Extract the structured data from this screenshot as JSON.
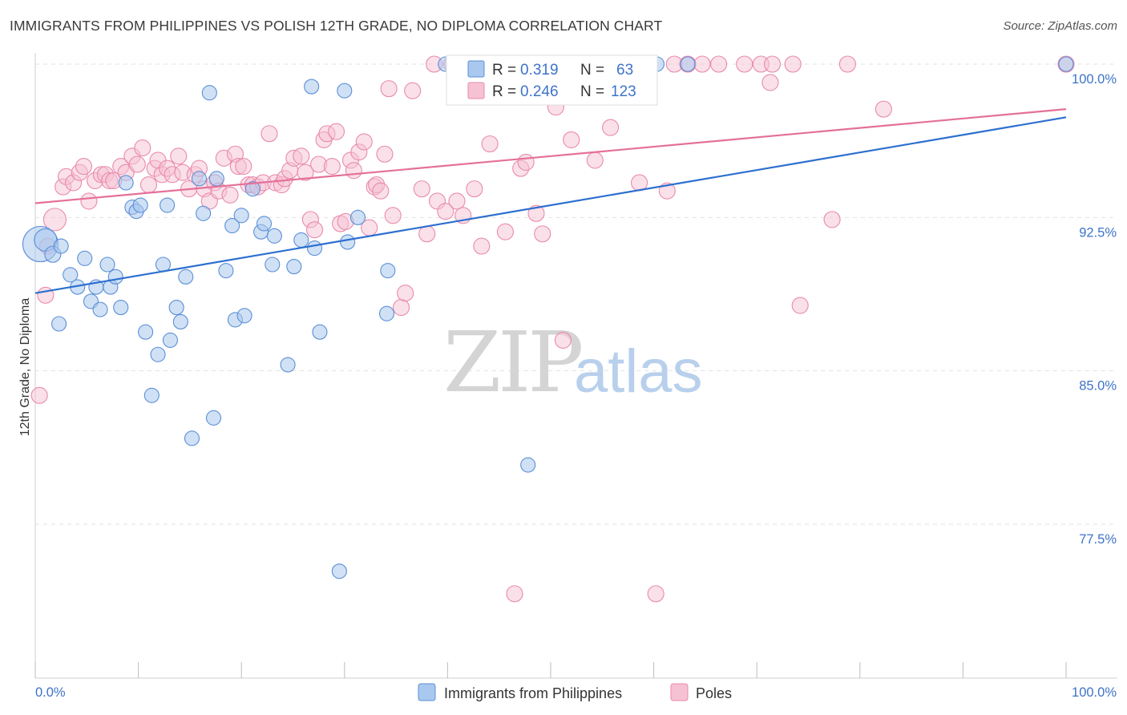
{
  "header": {
    "title": "IMMIGRANTS FROM PHILIPPINES VS POLISH 12TH GRADE, NO DIPLOMA CORRELATION CHART",
    "source": "Source: ZipAtlas.com"
  },
  "watermark": {
    "zip": "ZIP",
    "atlas": "atlas"
  },
  "legend": {
    "rows": [
      {
        "r_label": "R =",
        "r_value": "0.319",
        "n_label": "N =",
        "n_value": "63"
      },
      {
        "r_label": "R =",
        "r_value": "0.246",
        "n_label": "N =",
        "n_value": "123"
      }
    ]
  },
  "colors": {
    "blue_fill": "#a9c8ef",
    "blue_stroke": "#5b8fd6",
    "blue_line": "#2c6fcf",
    "pink_fill": "#f6c1d3",
    "pink_stroke": "#e98aab",
    "pink_line": "#e4709a",
    "tick_label": "#3e73c8",
    "grid": "#e3e3e3"
  },
  "chart_data": {
    "type": "scatter",
    "title": "IMMIGRANTS FROM PHILIPPINES VS POLISH 12TH GRADE, NO DIPLOMA CORRELATION CHART",
    "xlabel": "",
    "ylabel": "12th Grade, No Diploma",
    "xlim": [
      0,
      100
    ],
    "ylim": [
      70,
      101.5
    ],
    "x_tick_labels": [
      "0.0%",
      "100.0%"
    ],
    "y_ticks": [
      77.5,
      85.0,
      92.5,
      100.0
    ],
    "y_tick_labels": [
      "77.5%",
      "85.0%",
      "92.5%",
      "100.0%"
    ],
    "grid": true,
    "legend_position": "bottom",
    "series": [
      {
        "name": "Immigrants from Philippines",
        "color": "#a9c8ef",
        "R": 0.319,
        "N": 63,
        "trend": {
          "x": [
            0,
            100
          ],
          "y": [
            88.8,
            97.4
          ]
        },
        "points": [
          [
            0.5,
            91.2,
            22
          ],
          [
            1.0,
            91.4,
            14
          ],
          [
            1.7,
            90.7,
            10
          ],
          [
            2.5,
            91.1,
            9
          ],
          [
            2.3,
            87.3,
            9
          ],
          [
            3.4,
            89.7,
            9
          ],
          [
            4.1,
            89.1,
            9
          ],
          [
            4.8,
            90.5,
            9
          ],
          [
            5.4,
            88.4,
            9
          ],
          [
            5.9,
            89.1,
            9
          ],
          [
            6.3,
            88.0,
            9
          ],
          [
            7.0,
            90.2,
            9
          ],
          [
            7.3,
            89.1,
            9
          ],
          [
            7.8,
            89.6,
            9
          ],
          [
            8.3,
            88.1,
            9
          ],
          [
            8.8,
            94.2,
            9
          ],
          [
            9.4,
            93.0,
            9
          ],
          [
            9.8,
            92.8,
            9
          ],
          [
            10.2,
            93.1,
            9
          ],
          [
            10.7,
            86.9,
            9
          ],
          [
            11.3,
            83.8,
            9
          ],
          [
            11.9,
            85.8,
            9
          ],
          [
            12.4,
            90.2,
            9
          ],
          [
            12.8,
            93.1,
            9
          ],
          [
            13.1,
            86.5,
            9
          ],
          [
            13.7,
            88.1,
            9
          ],
          [
            14.1,
            87.4,
            9
          ],
          [
            14.6,
            89.6,
            9
          ],
          [
            15.2,
            81.7,
            9
          ],
          [
            15.9,
            94.4,
            9
          ],
          [
            16.3,
            92.7,
            9
          ],
          [
            16.9,
            98.6,
            9
          ],
          [
            17.3,
            82.7,
            9
          ],
          [
            17.6,
            94.4,
            9
          ],
          [
            18.5,
            89.9,
            9
          ],
          [
            19.1,
            92.1,
            9
          ],
          [
            19.4,
            87.5,
            9
          ],
          [
            20.0,
            92.6,
            9
          ],
          [
            20.3,
            87.7,
            9
          ],
          [
            21.1,
            93.9,
            9
          ],
          [
            21.9,
            91.8,
            9
          ],
          [
            22.2,
            92.2,
            9
          ],
          [
            23.0,
            90.2,
            9
          ],
          [
            23.2,
            91.6,
            9
          ],
          [
            24.5,
            85.3,
            9
          ],
          [
            25.1,
            90.1,
            9
          ],
          [
            25.8,
            91.4,
            9
          ],
          [
            26.8,
            98.9,
            9
          ],
          [
            27.1,
            91.0,
            9
          ],
          [
            27.6,
            86.9,
            9
          ],
          [
            29.5,
            75.2,
            9
          ],
          [
            30.0,
            98.7,
            9
          ],
          [
            30.3,
            91.3,
            9
          ],
          [
            31.3,
            92.5,
            9
          ],
          [
            34.2,
            89.9,
            9
          ],
          [
            34.1,
            87.8,
            9
          ],
          [
            39.8,
            100.0,
            9
          ],
          [
            47.6,
            100.0,
            9
          ],
          [
            47.3,
            98.6,
            9
          ],
          [
            47.8,
            80.4,
            9
          ],
          [
            60.3,
            100.0,
            9
          ],
          [
            63.3,
            100.0,
            9
          ],
          [
            100.0,
            100.0,
            9
          ]
        ]
      },
      {
        "name": "Poles",
        "color": "#f6c1d3",
        "R": 0.246,
        "N": 123,
        "trend": {
          "x": [
            0,
            100
          ],
          "y": [
            93.2,
            97.8
          ]
        },
        "points": [
          [
            0.4,
            83.8,
            10
          ],
          [
            1.0,
            88.7,
            10
          ],
          [
            1.2,
            91.1,
            10
          ],
          [
            1.9,
            92.4,
            14
          ],
          [
            2.7,
            94.0,
            10
          ],
          [
            3.0,
            94.5,
            10
          ],
          [
            3.7,
            94.2,
            10
          ],
          [
            4.3,
            94.7,
            10
          ],
          [
            4.7,
            95.0,
            10
          ],
          [
            5.2,
            93.3,
            10
          ],
          [
            5.8,
            94.3,
            10
          ],
          [
            6.4,
            94.6,
            10
          ],
          [
            6.8,
            94.6,
            10
          ],
          [
            7.2,
            94.3,
            10
          ],
          [
            7.6,
            94.3,
            10
          ],
          [
            8.3,
            95.0,
            10
          ],
          [
            8.8,
            94.7,
            10
          ],
          [
            9.4,
            95.5,
            10
          ],
          [
            9.9,
            95.1,
            10
          ],
          [
            10.4,
            95.9,
            10
          ],
          [
            11.0,
            94.1,
            10
          ],
          [
            11.6,
            94.9,
            10
          ],
          [
            11.9,
            95.3,
            10
          ],
          [
            12.3,
            94.6,
            10
          ],
          [
            12.8,
            94.9,
            10
          ],
          [
            13.3,
            94.6,
            10
          ],
          [
            13.9,
            95.5,
            10
          ],
          [
            14.3,
            94.7,
            10
          ],
          [
            14.9,
            93.9,
            10
          ],
          [
            15.5,
            94.6,
            10
          ],
          [
            15.9,
            94.9,
            10
          ],
          [
            16.4,
            93.9,
            10
          ],
          [
            16.9,
            93.3,
            10
          ],
          [
            17.4,
            94.2,
            10
          ],
          [
            17.8,
            93.8,
            10
          ],
          [
            18.3,
            95.4,
            10
          ],
          [
            18.9,
            93.6,
            10
          ],
          [
            19.4,
            95.6,
            10
          ],
          [
            19.7,
            95.0,
            10
          ],
          [
            20.2,
            95.0,
            10
          ],
          [
            20.7,
            94.1,
            10
          ],
          [
            21.1,
            94.1,
            10
          ],
          [
            21.6,
            94.0,
            10
          ],
          [
            22.1,
            94.2,
            10
          ],
          [
            22.7,
            96.6,
            10
          ],
          [
            23.3,
            94.2,
            10
          ],
          [
            23.9,
            94.1,
            10
          ],
          [
            24.2,
            94.4,
            10
          ],
          [
            24.7,
            94.8,
            10
          ],
          [
            25.1,
            95.4,
            10
          ],
          [
            25.8,
            95.5,
            10
          ],
          [
            26.2,
            94.7,
            10
          ],
          [
            26.7,
            92.4,
            10
          ],
          [
            27.1,
            91.9,
            10
          ],
          [
            27.5,
            95.1,
            10
          ],
          [
            28.0,
            96.3,
            10
          ],
          [
            28.3,
            96.6,
            10
          ],
          [
            28.8,
            95.0,
            10
          ],
          [
            29.2,
            96.7,
            10
          ],
          [
            29.6,
            92.2,
            10
          ],
          [
            30.1,
            92.3,
            10
          ],
          [
            30.6,
            95.3,
            10
          ],
          [
            30.9,
            94.8,
            10
          ],
          [
            31.4,
            95.7,
            10
          ],
          [
            31.9,
            96.2,
            10
          ],
          [
            32.4,
            92.0,
            10
          ],
          [
            32.9,
            94.0,
            10
          ],
          [
            33.1,
            94.1,
            10
          ],
          [
            33.5,
            93.8,
            10
          ],
          [
            33.9,
            95.6,
            10
          ],
          [
            34.3,
            98.8,
            10
          ],
          [
            34.7,
            92.6,
            10
          ],
          [
            35.5,
            88.1,
            10
          ],
          [
            35.9,
            88.8,
            10
          ],
          [
            36.6,
            98.7,
            10
          ],
          [
            37.5,
            93.9,
            10
          ],
          [
            38.0,
            91.7,
            10
          ],
          [
            38.7,
            100.0,
            10
          ],
          [
            39.0,
            93.3,
            10
          ],
          [
            39.8,
            92.8,
            10
          ],
          [
            40.4,
            100.0,
            10
          ],
          [
            40.9,
            93.3,
            10
          ],
          [
            41.5,
            92.6,
            10
          ],
          [
            42.2,
            100.0,
            10
          ],
          [
            42.6,
            93.9,
            10
          ],
          [
            43.0,
            98.7,
            10
          ],
          [
            43.3,
            91.1,
            10
          ],
          [
            44.1,
            96.1,
            10
          ],
          [
            45.0,
            100.0,
            10
          ],
          [
            45.6,
            91.8,
            10
          ],
          [
            46.3,
            100.0,
            10
          ],
          [
            46.5,
            74.1,
            10
          ],
          [
            47.1,
            94.9,
            10
          ],
          [
            47.6,
            95.2,
            10
          ],
          [
            48.6,
            92.7,
            10
          ],
          [
            49.2,
            91.7,
            10
          ],
          [
            50.0,
            100.0,
            10
          ],
          [
            50.5,
            97.9,
            10
          ],
          [
            51.2,
            86.5,
            10
          ],
          [
            52.0,
            96.3,
            10
          ],
          [
            52.6,
            100.0,
            10
          ],
          [
            53.4,
            98.6,
            10
          ],
          [
            54.3,
            95.3,
            10
          ],
          [
            55.0,
            100.0,
            10
          ],
          [
            55.8,
            96.9,
            10
          ],
          [
            57.0,
            100.0,
            10
          ],
          [
            58.6,
            94.2,
            10
          ],
          [
            60.2,
            74.1,
            10
          ],
          [
            61.3,
            93.8,
            10
          ],
          [
            62.0,
            100.0,
            10
          ],
          [
            63.3,
            100.0,
            10
          ],
          [
            64.7,
            100.0,
            10
          ],
          [
            66.3,
            100.0,
            10
          ],
          [
            68.8,
            100.0,
            10
          ],
          [
            70.4,
            100.0,
            10
          ],
          [
            71.3,
            99.1,
            10
          ],
          [
            71.5,
            100.0,
            10
          ],
          [
            73.5,
            100.0,
            10
          ],
          [
            74.2,
            88.2,
            10
          ],
          [
            77.3,
            92.4,
            10
          ],
          [
            78.8,
            100.0,
            10
          ],
          [
            82.3,
            97.8,
            10
          ],
          [
            100.0,
            100.0,
            10
          ]
        ]
      }
    ]
  }
}
